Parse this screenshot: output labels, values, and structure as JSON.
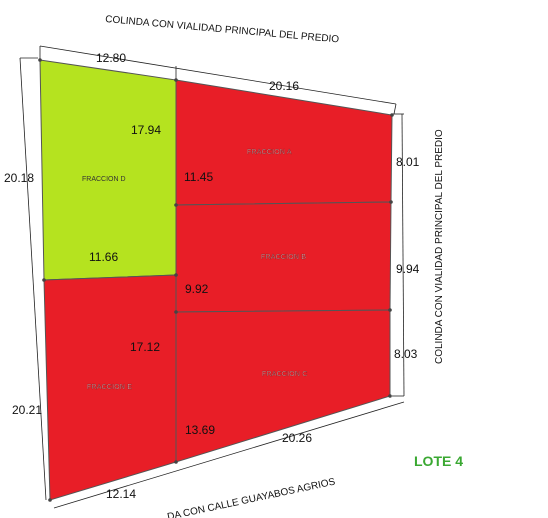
{
  "colors": {
    "red": "#e81e27",
    "green": "#b5e31f",
    "lote": "#3aa832"
  },
  "labels": {
    "north": "COLINDA CON VIALIDAD PRINCIPAL DEL PREDIO",
    "east": "COLINDA CON VIALIDAD PRINCIPAL DEL PREDIO",
    "south": "DA CON CALLE GUAYABOS AGRIOS",
    "lote": "LOTE 4"
  },
  "fractions": {
    "a": "FRACCION A",
    "b": "FRACCION B",
    "c": "FRACCION C",
    "d": "FRACCION D",
    "e": "FRACCION E"
  },
  "dimensions": {
    "top_left": "12.80",
    "top_right": "20.16",
    "left_top": "20.18",
    "left_bottom": "20.21",
    "right_top": "8.01",
    "right_mid": "9.94",
    "right_bottom": "8.03",
    "bottom_left": "12.14",
    "bottom_right": "20.26",
    "d_top": "17.94",
    "d_right": "11.45",
    "d_bottom": "11.66",
    "b_left": "9.92",
    "e_top": "17.12",
    "e_right": "13.69"
  }
}
